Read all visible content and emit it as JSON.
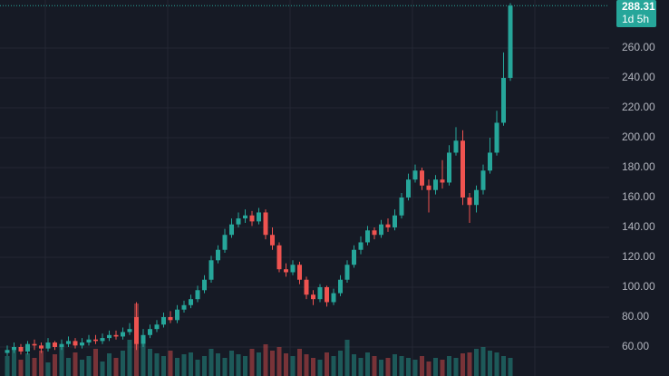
{
  "chart_data": {
    "type": "candlestick",
    "open": [
      56,
      58,
      60,
      57,
      62,
      61,
      59,
      63,
      60,
      62,
      64,
      61,
      63,
      65,
      64,
      66,
      68,
      67,
      70,
      80,
      62,
      68,
      72,
      75,
      80,
      78,
      85,
      88,
      92,
      98,
      105,
      118,
      125,
      135,
      142,
      146,
      148,
      144,
      150,
      135,
      128,
      112,
      110,
      115,
      105,
      95,
      92,
      100,
      90,
      96,
      105,
      115,
      125,
      130,
      138,
      135,
      142,
      140,
      148,
      160,
      172,
      178,
      168,
      165,
      172,
      170,
      190,
      198,
      160,
      155,
      165,
      178,
      190,
      210,
      240
    ],
    "high": [
      61,
      63,
      62,
      64,
      65,
      63,
      66,
      64,
      65,
      67,
      66,
      66,
      68,
      68,
      69,
      71,
      71,
      73,
      76,
      90,
      72,
      75,
      78,
      83,
      84,
      88,
      91,
      95,
      101,
      108,
      121,
      128,
      139,
      146,
      150,
      152,
      151,
      153,
      152,
      140,
      130,
      116,
      118,
      117,
      107,
      98,
      102,
      101,
      99,
      108,
      118,
      128,
      134,
      141,
      140,
      145,
      146,
      152,
      163,
      176,
      182,
      180,
      172,
      175,
      185,
      195,
      207,
      205,
      163,
      168,
      182,
      200,
      218,
      257,
      290
    ],
    "low": [
      54,
      56,
      55,
      55,
      58,
      56,
      57,
      58,
      58,
      60,
      59,
      59,
      61,
      62,
      62,
      64,
      65,
      65,
      68,
      58,
      60,
      66,
      70,
      73,
      76,
      76,
      83,
      86,
      90,
      96,
      103,
      116,
      123,
      133,
      140,
      143,
      141,
      142,
      132,
      125,
      110,
      107,
      108,
      102,
      92,
      88,
      90,
      87,
      88,
      94,
      103,
      113,
      122,
      128,
      132,
      133,
      137,
      138,
      146,
      158,
      170,
      165,
      150,
      162,
      166,
      168,
      188,
      155,
      143,
      150,
      162,
      176,
      188,
      208,
      238
    ],
    "close": [
      58,
      60,
      57,
      62,
      61,
      59,
      63,
      60,
      62,
      64,
      61,
      63,
      65,
      64,
      66,
      68,
      67,
      70,
      72,
      62,
      68,
      72,
      75,
      80,
      78,
      85,
      88,
      92,
      98,
      105,
      118,
      125,
      135,
      142,
      146,
      148,
      144,
      150,
      135,
      128,
      112,
      110,
      115,
      105,
      95,
      92,
      100,
      90,
      96,
      105,
      115,
      125,
      130,
      138,
      135,
      142,
      140,
      148,
      160,
      172,
      178,
      168,
      165,
      172,
      170,
      190,
      198,
      160,
      155,
      165,
      178,
      190,
      210,
      240,
      288.31
    ],
    "volume": [
      22,
      30,
      18,
      25,
      20,
      28,
      15,
      24,
      35,
      20,
      26,
      18,
      22,
      30,
      16,
      25,
      20,
      28,
      40,
      80,
      35,
      30,
      25,
      22,
      28,
      20,
      24,
      26,
      18,
      22,
      30,
      25,
      20,
      28,
      24,
      22,
      30,
      26,
      35,
      28,
      32,
      25,
      22,
      30,
      24,
      20,
      18,
      26,
      22,
      28,
      40,
      24,
      20,
      26,
      22,
      18,
      20,
      24,
      22,
      20,
      18,
      22,
      16,
      20,
      18,
      22,
      20,
      25,
      26,
      30,
      32,
      28,
      26,
      22,
      20
    ],
    "ylim": [
      40.6,
      292.1
    ],
    "volume_ylim": [
      0,
      100
    ],
    "yticks": [
      {
        "value": 60,
        "label": "60.00"
      },
      {
        "value": 80,
        "label": "80.00"
      },
      {
        "value": 100,
        "label": "100.00"
      },
      {
        "value": 120,
        "label": "120.00"
      },
      {
        "value": 140,
        "label": "140.00"
      },
      {
        "value": 160,
        "label": "160.00"
      },
      {
        "value": 180,
        "label": "180.00"
      },
      {
        "value": 200,
        "label": "200.00"
      },
      {
        "value": 220,
        "label": "220.00"
      },
      {
        "value": 240,
        "label": "240.00"
      },
      {
        "value": 260,
        "label": "260.00"
      }
    ],
    "countdown": "1d 5h",
    "up_color": "#26a69a",
    "down_color": "#ef5350",
    "grid": true
  }
}
